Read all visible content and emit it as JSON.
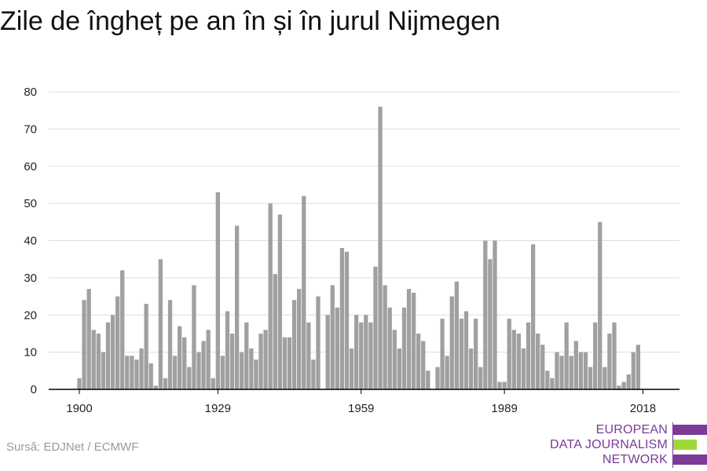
{
  "title": "Zile de îngheț pe an în și în jurul Nijmegen",
  "source": "Sursă: EDJNet / ECMWF",
  "logo": {
    "line1": "EUROPEAN",
    "line2": "DATA JOURNALISM",
    "line3": "NETWORK",
    "color_primary": "#7b3b96",
    "color_accent": "#9ed93a"
  },
  "colors": {
    "bar": "#a0a0a0",
    "grid": "#dddddd",
    "axis": "#000000"
  },
  "chart_data": {
    "type": "bar",
    "title": "Zile de îngheț pe an în și în jurul Nijmegen",
    "xlabel": "",
    "ylabel": "",
    "ylim": [
      0,
      80
    ],
    "yticks": [
      0,
      10,
      20,
      30,
      40,
      50,
      60,
      70,
      80
    ],
    "xticks": [
      1900,
      1929,
      1959,
      1989,
      2018
    ],
    "x": [
      1900,
      1901,
      1902,
      1903,
      1904,
      1905,
      1906,
      1907,
      1908,
      1909,
      1910,
      1911,
      1912,
      1913,
      1914,
      1915,
      1916,
      1917,
      1918,
      1919,
      1920,
      1921,
      1922,
      1923,
      1924,
      1925,
      1926,
      1927,
      1928,
      1929,
      1930,
      1931,
      1932,
      1933,
      1934,
      1935,
      1936,
      1937,
      1938,
      1939,
      1940,
      1941,
      1942,
      1943,
      1944,
      1945,
      1946,
      1947,
      1948,
      1949,
      1950,
      1951,
      1952,
      1953,
      1954,
      1955,
      1956,
      1957,
      1958,
      1959,
      1960,
      1961,
      1962,
      1963,
      1964,
      1965,
      1966,
      1967,
      1968,
      1969,
      1970,
      1971,
      1972,
      1973,
      1974,
      1975,
      1976,
      1977,
      1978,
      1979,
      1980,
      1981,
      1982,
      1983,
      1984,
      1985,
      1986,
      1987,
      1988,
      1989,
      1990,
      1991,
      1992,
      1993,
      1994,
      1995,
      1996,
      1997,
      1998,
      1999,
      2000,
      2001,
      2002,
      2003,
      2004,
      2005,
      2006,
      2007,
      2008,
      2009,
      2010,
      2011,
      2012,
      2013,
      2014,
      2015,
      2016,
      2017,
      2018
    ],
    "values": [
      3,
      24,
      27,
      16,
      15,
      10,
      18,
      20,
      25,
      32,
      9,
      9,
      8,
      11,
      23,
      7,
      1,
      35,
      3,
      24,
      9,
      17,
      14,
      6,
      28,
      10,
      13,
      16,
      3,
      53,
      9,
      21,
      15,
      44,
      10,
      18,
      11,
      8,
      15,
      16,
      50,
      31,
      47,
      14,
      14,
      24,
      27,
      52,
      18,
      8,
      25,
      0,
      20,
      28,
      22,
      38,
      37,
      11,
      20,
      18,
      20,
      18,
      33,
      76,
      28,
      22,
      16,
      11,
      22,
      27,
      26,
      15,
      13,
      5,
      0,
      6,
      19,
      9,
      25,
      29,
      19,
      21,
      11,
      19,
      6,
      40,
      35,
      40,
      2,
      2,
      19,
      16,
      15,
      11,
      18,
      39,
      15,
      12,
      5,
      3,
      10,
      9,
      18,
      9,
      13,
      10,
      10,
      6,
      18,
      45,
      6,
      15,
      18,
      1,
      2,
      4,
      10,
      12,
      0
    ],
    "grid": true,
    "legend": "none"
  }
}
